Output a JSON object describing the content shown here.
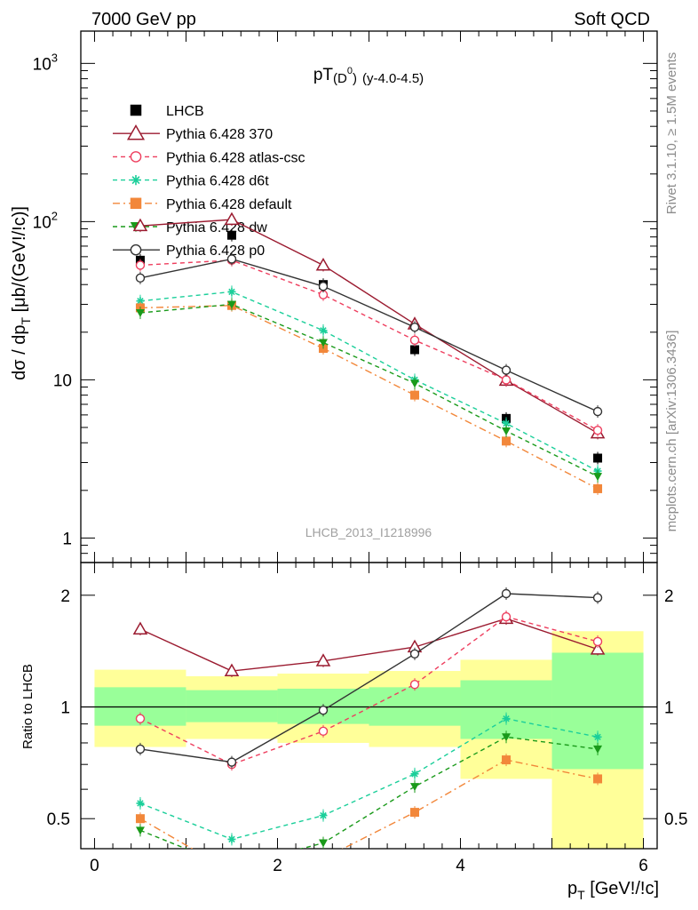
{
  "header": {
    "left": "7000 GeV pp",
    "right": "Soft QCD"
  },
  "side_labels": {
    "rivet": "Rivet 3.1.10, ≥ 1.5M events",
    "mcplots": "mcplots.cern.ch [arXiv:1306.3436]"
  },
  "chart_data": [
    {
      "panel": "main",
      "type": "line",
      "title": "pT(D⁰) (y-4.0-4.5)",
      "title_parts": {
        "main": "pT",
        "open": "(D",
        "sup": "0",
        "close": ")",
        "tail": "(y-4.0-4.5)"
      },
      "ylabel": "dσ / dpₜ [μb/(GeV!/!c)]",
      "ylabel_parts": {
        "a": "dσ / dp",
        "sub": "T",
        "b": " [μb/(GeV!/!c)]"
      },
      "watermark": "LHCB_2013_I1218996",
      "yscale": "log",
      "ylim": [
        0.7,
        1600
      ],
      "xlim": [
        -0.15,
        6.15
      ],
      "ytick_labels": [
        {
          "value": 1,
          "label": "1"
        },
        {
          "value": 10,
          "label": "10"
        },
        {
          "value": 100,
          "label": "10",
          "exp": "2"
        },
        {
          "value": 1000,
          "label": "10",
          "exp": "3"
        }
      ],
      "legend_position": "top-left",
      "x": [
        0.5,
        1.5,
        2.5,
        3.5,
        4.5,
        5.5
      ],
      "series": [
        {
          "name": "LHCB",
          "color": "#000000",
          "marker": "square-filled",
          "line": "none",
          "values": [
            57,
            82,
            40,
            15.5,
            5.7,
            3.2
          ]
        },
        {
          "name": "Pythia 6.428 370",
          "color": "#9b1b30",
          "marker": "triangle-open",
          "line": "solid",
          "values": [
            94,
            103,
            53,
            22.5,
            9.9,
            4.6
          ]
        },
        {
          "name": "Pythia 6.428 atlas-csc",
          "color": "#ee3e5e",
          "marker": "circle-open",
          "line": "dashed",
          "values": [
            53,
            57,
            34.5,
            17.8,
            10,
            4.8
          ]
        },
        {
          "name": "Pythia 6.428 d6t",
          "color": "#1bcf9a",
          "marker": "star",
          "line": "dashed",
          "values": [
            31.5,
            36,
            20.5,
            10,
            5.3,
            2.65
          ]
        },
        {
          "name": "Pythia 6.428 default",
          "color": "#f2873a",
          "marker": "square-filled",
          "line": "dashdot",
          "values": [
            28.5,
            29.5,
            15.8,
            8,
            4.1,
            2.05
          ]
        },
        {
          "name": "Pythia 6.428 dw",
          "color": "#1a9a1a",
          "marker": "triangle-down-filled",
          "line": "dashed",
          "values": [
            26.5,
            30,
            17.2,
            9.5,
            4.75,
            2.45
          ]
        },
        {
          "name": "Pythia 6.428 p0",
          "color": "#333333",
          "marker": "circle-open",
          "line": "solid",
          "values": [
            44,
            58,
            39,
            21.5,
            11.5,
            6.3
          ]
        }
      ]
    },
    {
      "panel": "ratio",
      "type": "line",
      "ylabel": "Ratio to LHCB",
      "xlabel": "pₜ [GeV!/!c]",
      "xlabel_parts": {
        "a": "p",
        "sub": "T",
        "b": " [GeV!/!c]"
      },
      "yscale": "log",
      "ylim": [
        0.415,
        2.45
      ],
      "xlim": [
        -0.15,
        6.15
      ],
      "xticks": [
        0,
        2,
        4,
        6
      ],
      "ytick_labels": [
        {
          "value": 0.5,
          "label": "0.5"
        },
        {
          "value": 1,
          "label": "1"
        },
        {
          "value": 2,
          "label": "2"
        }
      ],
      "bands": {
        "bins": [
          [
            0,
            1
          ],
          [
            1,
            2
          ],
          [
            2,
            3
          ],
          [
            3,
            4
          ],
          [
            4,
            5
          ],
          [
            5,
            6
          ]
        ],
        "outer": [
          [
            0.78,
            1.26
          ],
          [
            0.82,
            1.21
          ],
          [
            0.8,
            1.23
          ],
          [
            0.78,
            1.25
          ],
          [
            0.64,
            1.34
          ],
          [
            0.4,
            1.6
          ]
        ],
        "inner": [
          [
            0.89,
            1.13
          ],
          [
            0.91,
            1.11
          ],
          [
            0.9,
            1.12
          ],
          [
            0.89,
            1.13
          ],
          [
            0.82,
            1.18
          ],
          [
            0.68,
            1.4
          ]
        ],
        "outer_color": "#ffff99",
        "inner_color": "#99ff99"
      },
      "x": [
        0.5,
        1.5,
        2.5,
        3.5,
        4.5,
        5.5
      ],
      "series": [
        {
          "name": "Pythia 6.428 370",
          "values": [
            1.62,
            1.25,
            1.33,
            1.45,
            1.73,
            1.43
          ]
        },
        {
          "name": "Pythia 6.428 atlas-csc",
          "values": [
            0.93,
            0.7,
            0.86,
            1.15,
            1.75,
            1.5
          ]
        },
        {
          "name": "Pythia 6.428 d6t",
          "values": [
            0.55,
            0.44,
            0.51,
            0.66,
            0.93,
            0.83
          ]
        },
        {
          "name": "Pythia 6.428 default",
          "values": [
            0.5,
            0.36,
            0.39,
            0.52,
            0.72,
            0.64
          ]
        },
        {
          "name": "Pythia 6.428 dw",
          "values": [
            0.465,
            0.37,
            0.43,
            0.61,
            0.83,
            0.77
          ]
        },
        {
          "name": "Pythia 6.428 p0",
          "values": [
            0.77,
            0.71,
            0.98,
            1.39,
            2.02,
            1.97
          ]
        }
      ]
    }
  ]
}
